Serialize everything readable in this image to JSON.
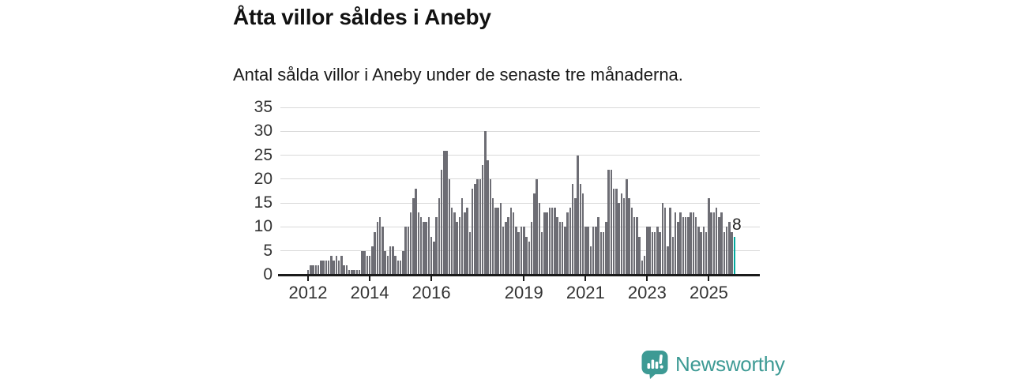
{
  "header": {
    "title": "Åtta villor såldes i Aneby",
    "subtitle": "Antal sålda villor i Aneby under de senaste tre månaderna."
  },
  "chart_data": {
    "type": "bar",
    "title": "Åtta villor såldes i Aneby",
    "subtitle": "Antal sålda villor i Aneby under de senaste tre månaderna.",
    "x_start_month": "2012-01",
    "x_end_month": "2025-11",
    "values": [
      1,
      2,
      2,
      2,
      2,
      3,
      3,
      3,
      3,
      4,
      3,
      4,
      3,
      4,
      2,
      2,
      1,
      1,
      1,
      1,
      1,
      5,
      5,
      4,
      4,
      6,
      9,
      11,
      12,
      10,
      5,
      4,
      6,
      6,
      4,
      3,
      3,
      5,
      10,
      10,
      13,
      16,
      18,
      13,
      12,
      11,
      11,
      12,
      8,
      7,
      12,
      16,
      22,
      26,
      26,
      20,
      14,
      13,
      11,
      12,
      16,
      13,
      14,
      9,
      18,
      19,
      20,
      20,
      23,
      30,
      24,
      20,
      16,
      14,
      14,
      15,
      10,
      11,
      12,
      14,
      13,
      10,
      9,
      10,
      10,
      8,
      7,
      11,
      17,
      20,
      15,
      9,
      13,
      13,
      14,
      14,
      14,
      12,
      11,
      11,
      10,
      13,
      14,
      19,
      16,
      25,
      19,
      17,
      10,
      10,
      6,
      10,
      10,
      12,
      9,
      9,
      11,
      22,
      22,
      18,
      18,
      15,
      17,
      16,
      20,
      16,
      14,
      12,
      12,
      8,
      3,
      4,
      10,
      10,
      9,
      9,
      10,
      9,
      15,
      14,
      6,
      14,
      8,
      13,
      11,
      13,
      12,
      12,
      12,
      13,
      13,
      12,
      10,
      9,
      10,
      9,
      16,
      13,
      13,
      14,
      12,
      13,
      9,
      10,
      11,
      9,
      8
    ],
    "x_ticks": [
      {
        "label": "2012",
        "index": 0
      },
      {
        "label": "2014",
        "index": 24
      },
      {
        "label": "2016",
        "index": 48
      },
      {
        "label": "2019",
        "index": 84
      },
      {
        "label": "2021",
        "index": 108
      },
      {
        "label": "2023",
        "index": 132
      },
      {
        "label": "2025",
        "index": 156
      }
    ],
    "y_ticks": [
      0,
      5,
      10,
      15,
      20,
      25,
      30,
      35
    ],
    "ylim": [
      0,
      35
    ],
    "grid": true,
    "legend": "none",
    "bar_color": "#6d6d74",
    "highlight": {
      "index": 166,
      "value": 8,
      "label": "8",
      "color": "#00a89d"
    }
  },
  "branding": {
    "logo_text": "Newsworthy",
    "logo_color": "#3d9a94",
    "logo_icon": "newsworthy-speech-bubble-bar-chart-icon"
  }
}
